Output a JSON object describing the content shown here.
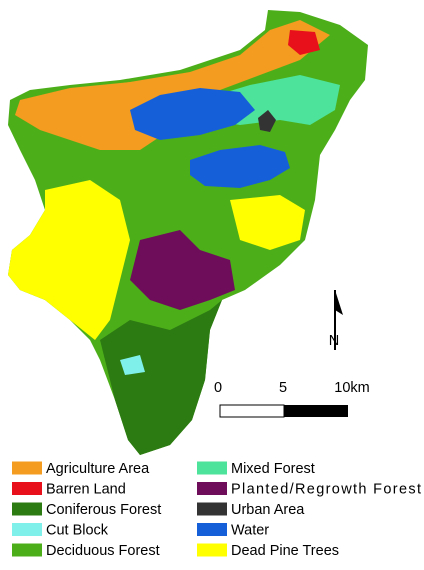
{
  "legend": {
    "items": [
      {
        "label": "Agriculture Area",
        "color": "#f39c1f"
      },
      {
        "label": "Barren Land",
        "color": "#e8101a"
      },
      {
        "label": "Coniferous Forest",
        "color": "#2c7a12"
      },
      {
        "label": "Cut Block",
        "color": "#7ff0ea"
      },
      {
        "label": "Deciduous Forest",
        "color": "#4caf1a"
      },
      {
        "label": "Mixed Forest",
        "color": "#4de39a"
      },
      {
        "label": "Planted/Regrowth Forest",
        "color": "#6e0d5a"
      },
      {
        "label": "Urban Area",
        "color": "#333333"
      },
      {
        "label": "Water",
        "color": "#1560d8"
      },
      {
        "label": "Dead Pine Trees",
        "color": "#ffff00"
      }
    ]
  },
  "scale_bar": {
    "labels": [
      "0",
      "5",
      "10km"
    ]
  },
  "north_arrow": {
    "label": "N"
  }
}
